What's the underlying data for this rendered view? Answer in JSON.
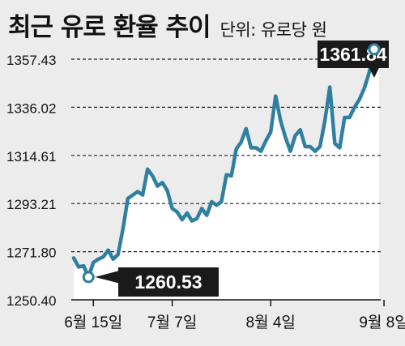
{
  "title": "최근 유로 환율 추이",
  "subtitle": "단위: 유로당 원",
  "colors": {
    "background": "#ececec",
    "line": "#2f7fa1",
    "grid": "#222222",
    "callout_bg": "#1a1a1a",
    "callout_text": "#ffffff",
    "marker_fill": "#ffffff"
  },
  "chart_data": {
    "type": "line",
    "title": "최근 유로 환율 추이",
    "unit": "단위: 유로당 원",
    "xlabel": "",
    "ylabel": "",
    "ylim": [
      1250.4,
      1357.43
    ],
    "y_ticks": [
      "1357.43",
      "1336.02",
      "1314.61",
      "1293.21",
      "1271.80",
      "1250.40"
    ],
    "x_ticks": [
      "6월 15일",
      "7월 7일",
      "8월 4일",
      "9월 8일"
    ],
    "x_tick_index": [
      4,
      20,
      40,
      63
    ],
    "grid": "horizontal dashed",
    "series": [
      {
        "values": [
          1269.0,
          1265.0,
          1265.5,
          1260.53,
          1267.0,
          1268.5,
          1269.5,
          1272.5,
          1268.5,
          1270.5,
          1282.0,
          1295.5,
          1297.0,
          1298.5,
          1297.0,
          1308.5,
          1305.5,
          1301.0,
          1302.5,
          1299.0,
          1291.0,
          1289.5,
          1286.0,
          1289.0,
          1285.5,
          1286.5,
          1291.0,
          1288.0,
          1294.0,
          1292.5,
          1294.0,
          1306.0,
          1305.5,
          1317.5,
          1320.5,
          1326.5,
          1318.0,
          1318.0,
          1316.5,
          1321.0,
          1325.0,
          1341.0,
          1330.0,
          1322.5,
          1316.5,
          1323.5,
          1326.0,
          1318.5,
          1318.5,
          1316.5,
          1318.5,
          1330.0,
          1345.0,
          1320.0,
          1318.0,
          1331.5,
          1331.5,
          1336.0,
          1339.5,
          1344.5,
          1351.5,
          1361.84,
          1358.0
        ]
      }
    ],
    "annotations": [
      {
        "text": "1361.84",
        "point_index": 61,
        "value": 1361.84
      },
      {
        "text": "1260.53",
        "point_index": 3,
        "value": 1260.53
      }
    ]
  }
}
